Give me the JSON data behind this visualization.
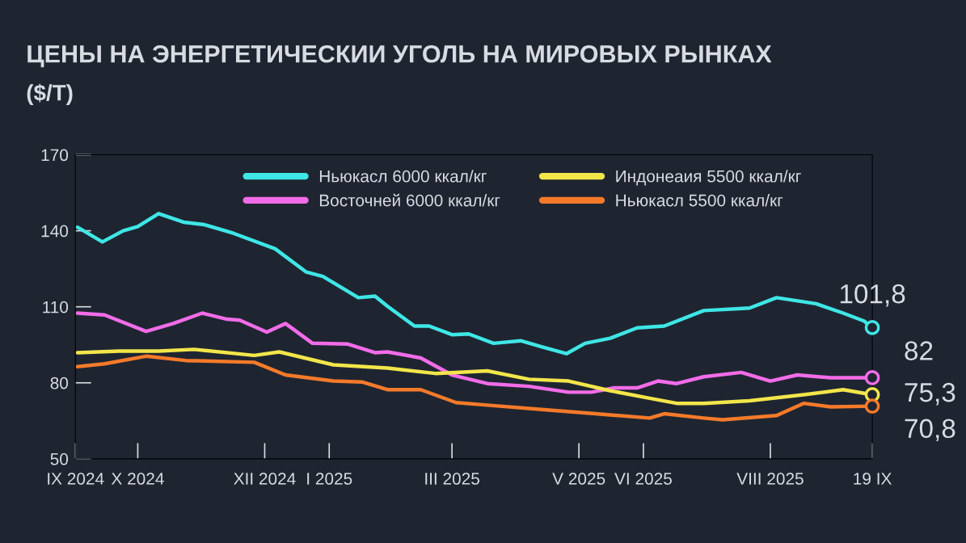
{
  "chart_data": {
    "type": "line",
    "title": "ЦЕНЫ НА ЭНЕРГЕТИЧЕСКИИ УГОЛЬ НА МИРОВЫХ РЫНКАХ",
    "subtitle": "($/T)",
    "xlim": [
      "2024-09-01",
      "2025-09-19"
    ],
    "xticks": [
      {
        "value": "2024-09-01",
        "label": "IX 2024"
      },
      {
        "value": "2024-10-01",
        "label": "X 2024"
      },
      {
        "value": "2024-12-01",
        "label": "XII 2024"
      },
      {
        "value": "2025-01-01",
        "label": "I 2025"
      },
      {
        "value": "2025-03-01",
        "label": "III 2025"
      },
      {
        "value": "2025-05-01",
        "label": "V 2025"
      },
      {
        "value": "2025-06-01",
        "label": "VI 2025"
      },
      {
        "value": "2025-08-01",
        "label": "VIII 2025"
      },
      {
        "value": "2025-09-19",
        "label": "19 IX"
      }
    ],
    "ylim": [
      50,
      170
    ],
    "yticks": [
      50,
      80,
      110,
      140,
      170
    ],
    "grid": false,
    "legend": "top right",
    "line_style": "solid",
    "marker": "none",
    "series": [
      {
        "name": "Ньюкасл 6000 ккал/кг",
        "color": "#3fe6e6",
        "x": [
          "2024-09-02",
          "2024-09-14",
          "2024-09-24",
          "2024-10-01",
          "2024-10-11",
          "2024-10-23",
          "2024-11-02",
          "2024-11-16",
          "2024-12-06",
          "2024-12-21",
          "2024-12-29",
          "2025-01-15",
          "2025-01-23",
          "2025-01-29",
          "2025-02-11",
          "2025-02-18",
          "2025-03-01",
          "2025-03-09",
          "2025-03-21",
          "2025-04-03",
          "2025-04-13",
          "2025-04-25",
          "2025-05-04",
          "2025-05-16",
          "2025-05-29",
          "2025-06-11",
          "2025-06-30",
          "2025-07-22",
          "2025-08-04",
          "2025-08-23",
          "2025-09-05",
          "2025-09-15",
          "2025-09-19"
        ],
        "values": [
          141.4,
          135.6,
          140.0,
          141.7,
          146.8,
          143.4,
          142.4,
          139.0,
          132.9,
          123.7,
          122.0,
          113.6,
          114.2,
          110.2,
          102.4,
          102.4,
          99.0,
          99.3,
          95.6,
          96.6,
          94.2,
          91.5,
          95.6,
          97.6,
          101.7,
          102.4,
          108.5,
          109.5,
          113.6,
          111.2,
          107.5,
          104.4,
          101.8
        ]
      },
      {
        "name": "Восточней 6000 ккал/кг",
        "color": "#f26ce8",
        "x": [
          "2024-09-02",
          "2024-09-15",
          "2024-10-05",
          "2024-10-18",
          "2024-11-01",
          "2024-11-13",
          "2024-11-19",
          "2024-12-02",
          "2024-12-11",
          "2024-12-24",
          "2025-01-10",
          "2025-01-23",
          "2025-01-29",
          "2025-02-14",
          "2025-03-01",
          "2025-03-18",
          "2025-04-07",
          "2025-04-26",
          "2025-05-07",
          "2025-05-18",
          "2025-05-29",
          "2025-06-08",
          "2025-06-17",
          "2025-06-30",
          "2025-07-18",
          "2025-08-01",
          "2025-08-14",
          "2025-08-30",
          "2025-09-19"
        ],
        "values": [
          107.5,
          106.8,
          100.3,
          103.4,
          107.5,
          105.1,
          104.7,
          100.0,
          103.4,
          95.6,
          95.3,
          91.9,
          92.2,
          89.8,
          83.1,
          79.7,
          78.6,
          76.3,
          76.3,
          78.0,
          78.0,
          80.7,
          79.7,
          82.4,
          84.1,
          80.7,
          83.1,
          82.0,
          82
        ]
      },
      {
        "name": "Индонеаия 5500 ккал/кг",
        "color": "#f2e64a",
        "x": [
          "2024-09-02",
          "2024-09-22",
          "2024-10-11",
          "2024-10-28",
          "2024-11-26",
          "2024-12-08",
          "2025-01-03",
          "2025-01-29",
          "2025-02-21",
          "2025-03-18",
          "2025-04-07",
          "2025-04-26",
          "2025-05-16",
          "2025-06-04",
          "2025-06-17",
          "2025-06-30",
          "2025-07-22",
          "2025-08-17",
          "2025-09-05",
          "2025-09-19"
        ],
        "values": [
          91.9,
          92.5,
          92.5,
          93.2,
          90.8,
          92.2,
          87.1,
          85.8,
          83.7,
          84.7,
          81.4,
          80.7,
          76.9,
          73.9,
          71.9,
          71.9,
          72.9,
          75.3,
          77.3,
          75.3
        ]
      },
      {
        "name": "Ньюкасл 5500 ккал/кг",
        "color": "#f57a2a",
        "x": [
          "2024-09-02",
          "2024-09-15",
          "2024-10-05",
          "2024-10-24",
          "2024-11-26",
          "2024-12-11",
          "2025-01-03",
          "2025-01-17",
          "2025-01-29",
          "2025-02-14",
          "2025-03-03",
          "2025-03-18",
          "2025-04-13",
          "2025-05-09",
          "2025-06-04",
          "2025-06-11",
          "2025-06-30",
          "2025-07-09",
          "2025-08-04",
          "2025-08-17",
          "2025-08-30",
          "2025-09-19"
        ],
        "values": [
          86.4,
          87.5,
          90.5,
          88.8,
          88.1,
          83.1,
          80.7,
          80.3,
          77.3,
          77.3,
          72.2,
          71.2,
          69.5,
          67.8,
          66.1,
          67.8,
          66.1,
          65.4,
          67.1,
          71.9,
          70.5,
          70.8
        ]
      }
    ],
    "annotations": [
      {
        "text": "101,8",
        "x": "2025-09-19",
        "y": 101.8
      },
      {
        "text": "82",
        "x": "2025-09-19",
        "y": 82
      },
      {
        "text": "75,3",
        "x": "2025-09-19",
        "y": 75.3
      },
      {
        "text": "70,8",
        "x": "2025-09-19",
        "y": 70.8
      }
    ]
  }
}
